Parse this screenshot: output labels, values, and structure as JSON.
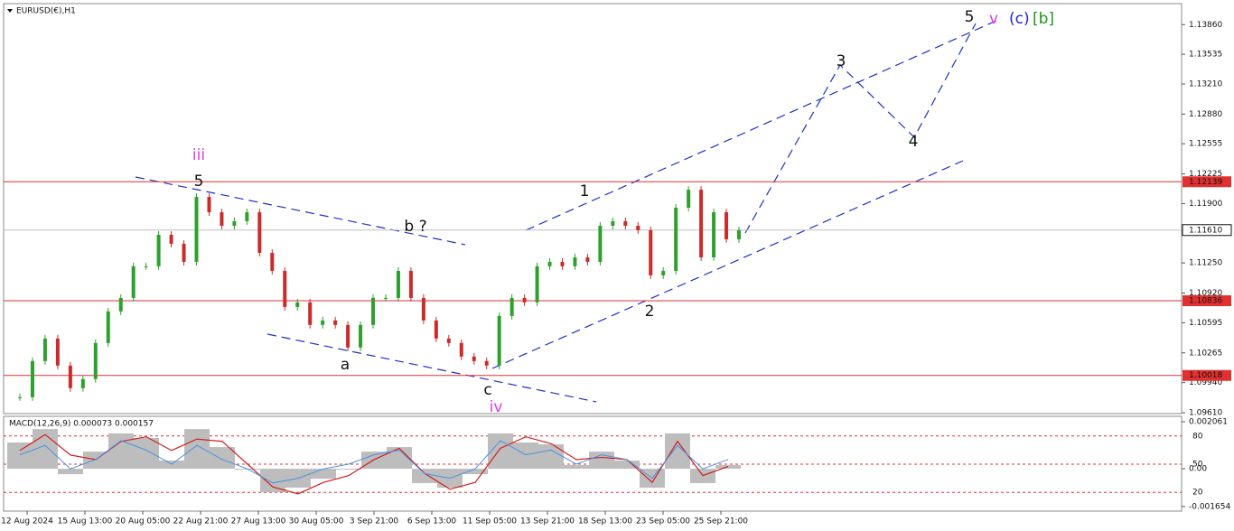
{
  "chart_data": [
    {
      "type": "price",
      "title": "EURUSD(€),H1",
      "values": [
        1.0978,
        1.10175,
        1.10422,
        1.10126,
        1.09879,
        1.09978,
        1.10373,
        1.10719,
        1.10867,
        1.11213,
        1.11213,
        1.11558,
        1.1146,
        1.11262,
        1.11973,
        1.11805,
        1.11657,
        1.11707,
        1.11805,
        1.11361,
        1.11163,
        1.10768,
        1.10818,
        1.10571,
        1.1062,
        1.10571,
        1.10324,
        1.10571,
        1.10867,
        1.10867,
        1.11163,
        1.10867,
        1.1062,
        1.10422,
        1.10373,
        1.10225,
        1.10175,
        1.10126,
        1.10669,
        1.10867,
        1.10818,
        1.11213,
        1.11262,
        1.11213,
        1.11311,
        1.11262,
        1.11657,
        1.11707,
        1.11657,
        1.11608,
        1.11114,
        1.11163,
        1.11855,
        1.12052,
        1.11311,
        1.11805,
        1.11509,
        1.11608
      ],
      "colors": {
        "up": "#2ea02e",
        "down": "#cc2b2b"
      },
      "ylim": [
        1.096,
        1.1409
      ],
      "yticks": [
        {
          "value": 1.1386,
          "label": "1.13860"
        },
        1.13535,
        {
          "value": 1.1321,
          "label": "1.13210"
        },
        {
          "value": 1.1288,
          "label": "1.12880"
        },
        1.12555,
        1.12225,
        {
          "value": 1.119,
          "label": "1.11900"
        },
        {
          "value": 1.1125,
          "label": "1.11250"
        },
        {
          "value": 1.1092,
          "label": "1.10920"
        },
        1.10595,
        1.10265,
        {
          "value": 1.0994,
          "label": "1.09940"
        },
        {
          "value": 1.0961,
          "label": "1.09610"
        }
      ],
      "levels": [
        {
          "value": 1.12139,
          "color": "#e03030"
        },
        {
          "value": 1.10836,
          "color": "#e03030"
        },
        {
          "value": 1.10018,
          "color": "#e03030"
        }
      ],
      "current": {
        "value": 1.1161,
        "label": "1.11610",
        "color": "#c0c0c0"
      },
      "x_labels": [
        "12 Aug 2024",
        "15 Aug 13:00",
        "20 Aug 05:00",
        "22 Aug 21:00",
        "27 Aug 13:00",
        "30 Aug 05:00",
        "3 Sep 21:00",
        "6 Sep 13:00",
        "11 Sep 05:00",
        "13 Sep 21:00",
        "18 Sep 13:00",
        "23 Sep 05:00",
        "25 Sep 21:00"
      ],
      "annotations": [
        {
          "text": "iii",
          "color": "#e03ce0"
        },
        {
          "text": "5",
          "color": "#111111"
        },
        {
          "text": "b ?",
          "color": "#111111"
        },
        {
          "text": "a",
          "color": "#111111"
        },
        {
          "text": "c",
          "color": "#111111"
        },
        {
          "text": "iv",
          "color": "#e03ce0"
        },
        {
          "text": "1",
          "color": "#111111"
        },
        {
          "text": "2",
          "color": "#111111"
        },
        {
          "text": "3",
          "color": "#111111"
        },
        {
          "text": "4",
          "color": "#111111"
        },
        {
          "text": "5",
          "color": "#111111"
        },
        {
          "text": "v",
          "color": "#e03ce0"
        },
        {
          "text": "(c)",
          "color": "#2020e0"
        },
        {
          "text": "[b]",
          "color": "#1a9a1a"
        }
      ]
    },
    {
      "type": "macd",
      "title": "MACD(12,26,9) 0.000073 0.000157",
      "values": [
        0.00115,
        0.00174,
        -0.00024,
        0.00075,
        0.00155,
        0.00135,
        0.00036,
        0.00174,
        0.00095,
        -4e-05,
        -0.00103,
        -0.00083,
        -0.00044,
        -4e-05,
        0.00075,
        0.00095,
        -0.00063,
        -0.00083,
        -0.00024,
        0.00155,
        0.00115,
        0.00107,
        0.00016,
        0.00075,
        0.00036,
        -0.00083,
        0.00155,
        -0.00063,
        0.00016
      ],
      "signal": [
        0.0008,
        0.0015,
        0.0006,
        0.0004,
        0.0012,
        0.0014,
        0.0008,
        0.0013,
        0.0012,
        0.0002,
        -0.0008,
        -0.0011,
        -0.0006,
        -0.0003,
        0.0004,
        0.0009,
        -0.0002,
        -0.0009,
        -0.0006,
        0.0009,
        0.0014,
        0.0011,
        0.0004,
        0.0005,
        0.0004,
        -0.0006,
        0.0012,
        -0.0003,
        0.0001
      ],
      "line": [
        60,
        70,
        45,
        55,
        75,
        65,
        50,
        70,
        55,
        45,
        30,
        35,
        45,
        50,
        60,
        65,
        40,
        35,
        45,
        75,
        60,
        65,
        50,
        60,
        55,
        35,
        70,
        45,
        55
      ],
      "colors": {
        "histogram": "#bdbdbd",
        "signal": "#d01f1f",
        "line": "#4a90e2",
        "levels": "#e03030"
      },
      "ylim": [
        -0.00186,
        0.00226
      ],
      "yticks": [
        0.002061,
        {
          "value": 0,
          "label": "0.00"
        },
        -0.001654
      ],
      "y2lim": [
        0,
        100
      ],
      "y2ticks": [
        80,
        50,
        20
      ]
    }
  ]
}
